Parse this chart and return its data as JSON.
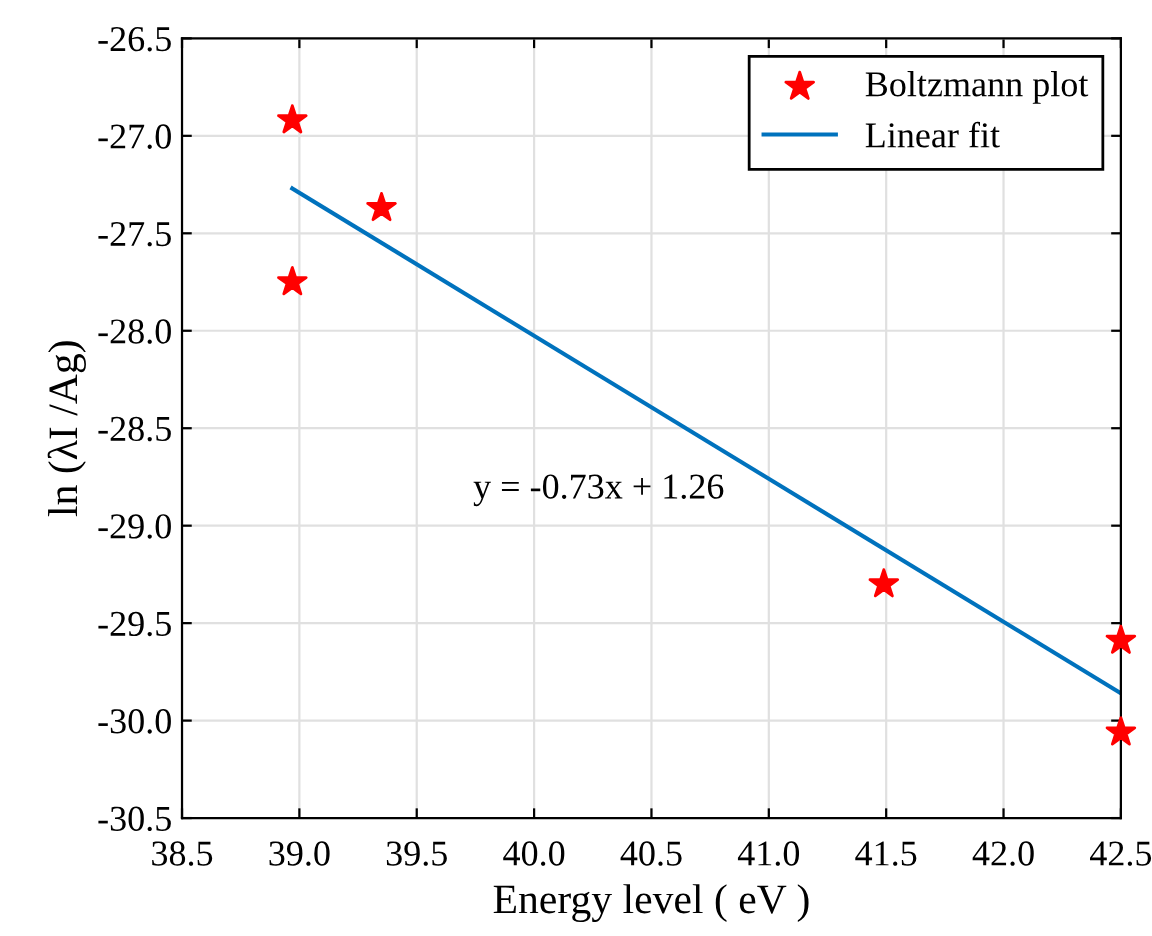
{
  "chart_data": {
    "type": "scatter",
    "xlabel": "Energy level ( eV )",
    "ylabel": "ln (λI /Ag)",
    "xlim": [
      38.5,
      42.5
    ],
    "xticks": [
      {
        "value": 38.5,
        "label": "38.5"
      },
      {
        "value": 39.0,
        "label": "39.0"
      },
      {
        "value": 39.5,
        "label": "39.5"
      },
      {
        "value": 40.0,
        "label": "40.0"
      },
      {
        "value": 40.5,
        "label": "40.5"
      },
      {
        "value": 41.0,
        "label": "41.0"
      },
      {
        "value": 41.5,
        "label": "41.5"
      },
      {
        "value": 42.0,
        "label": "42.0"
      },
      {
        "value": 42.5,
        "label": "42.5"
      }
    ],
    "ylim": [
      -30.5,
      -26.5
    ],
    "yticks": [
      {
        "value": -30.5,
        "label": "-30.5"
      },
      {
        "value": -30.0,
        "label": "-30.0"
      },
      {
        "value": -29.5,
        "label": "-29.5"
      },
      {
        "value": -29.0,
        "label": "-29.0"
      },
      {
        "value": -28.5,
        "label": "-28.5"
      },
      {
        "value": -28.0,
        "label": "-28.0"
      },
      {
        "value": -27.5,
        "label": "-27.5"
      },
      {
        "value": -27.0,
        "label": "-27.0"
      },
      {
        "value": -26.5,
        "label": "-26.5"
      }
    ],
    "grid": true,
    "legend": "top right",
    "annotations": [
      "y = -0.73x + 1.26"
    ],
    "series": [
      {
        "name": "Boltzmann plot",
        "marker": "star",
        "color": "#ff0000",
        "x": [
          38.97,
          38.97,
          39.35,
          41.49,
          42.5,
          42.5
        ],
        "values": [
          -26.92,
          -27.75,
          -27.37,
          -29.3,
          -29.59,
          -30.06
        ]
      },
      {
        "name": "Linear fit",
        "type": "line",
        "marker": "none",
        "color": "#0072bd",
        "x": [
          38.97,
          42.5
        ],
        "values": [
          -27.27,
          -29.86
        ]
      }
    ]
  }
}
